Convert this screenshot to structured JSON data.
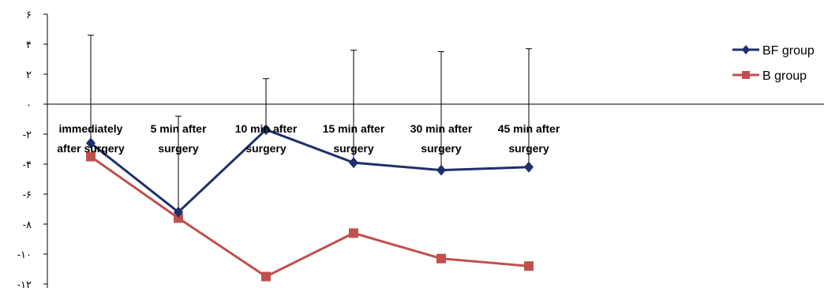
{
  "chart_data": {
    "type": "line",
    "categories": [
      [
        "immediately",
        "after surgery"
      ],
      [
        "5 min after",
        "surgery"
      ],
      [
        "10 min after",
        "surgery"
      ],
      [
        "15 min after",
        "surgery"
      ],
      [
        "30 min after",
        "surgery"
      ],
      [
        "45 min after",
        "surgery"
      ]
    ],
    "y_ticks": [
      6,
      4,
      2,
      0,
      -2,
      -4,
      -6,
      -8,
      -10,
      -12
    ],
    "y_tick_labels": [
      "۶",
      "۴",
      "۲",
      "۰",
      "-۲",
      "-۴",
      "-۶",
      "-۸",
      "-۱۰",
      "-۱۲"
    ],
    "ylim": [
      -12,
      6
    ],
    "grid": false,
    "legend_position": "right",
    "series": [
      {
        "name": "BF group",
        "color": "#1f2f6b",
        "marker": "diamond",
        "values": [
          -2.6,
          -7.2,
          -1.7,
          -3.9,
          -4.4,
          -4.2
        ],
        "error_upper": [
          4.6,
          -0.8,
          1.7,
          3.6,
          3.5,
          3.7
        ]
      },
      {
        "name": "B group",
        "color": "#c0504d",
        "marker": "square",
        "values": [
          -3.5,
          -7.6,
          -11.5,
          -8.6,
          -10.3,
          -10.8
        ]
      }
    ]
  }
}
